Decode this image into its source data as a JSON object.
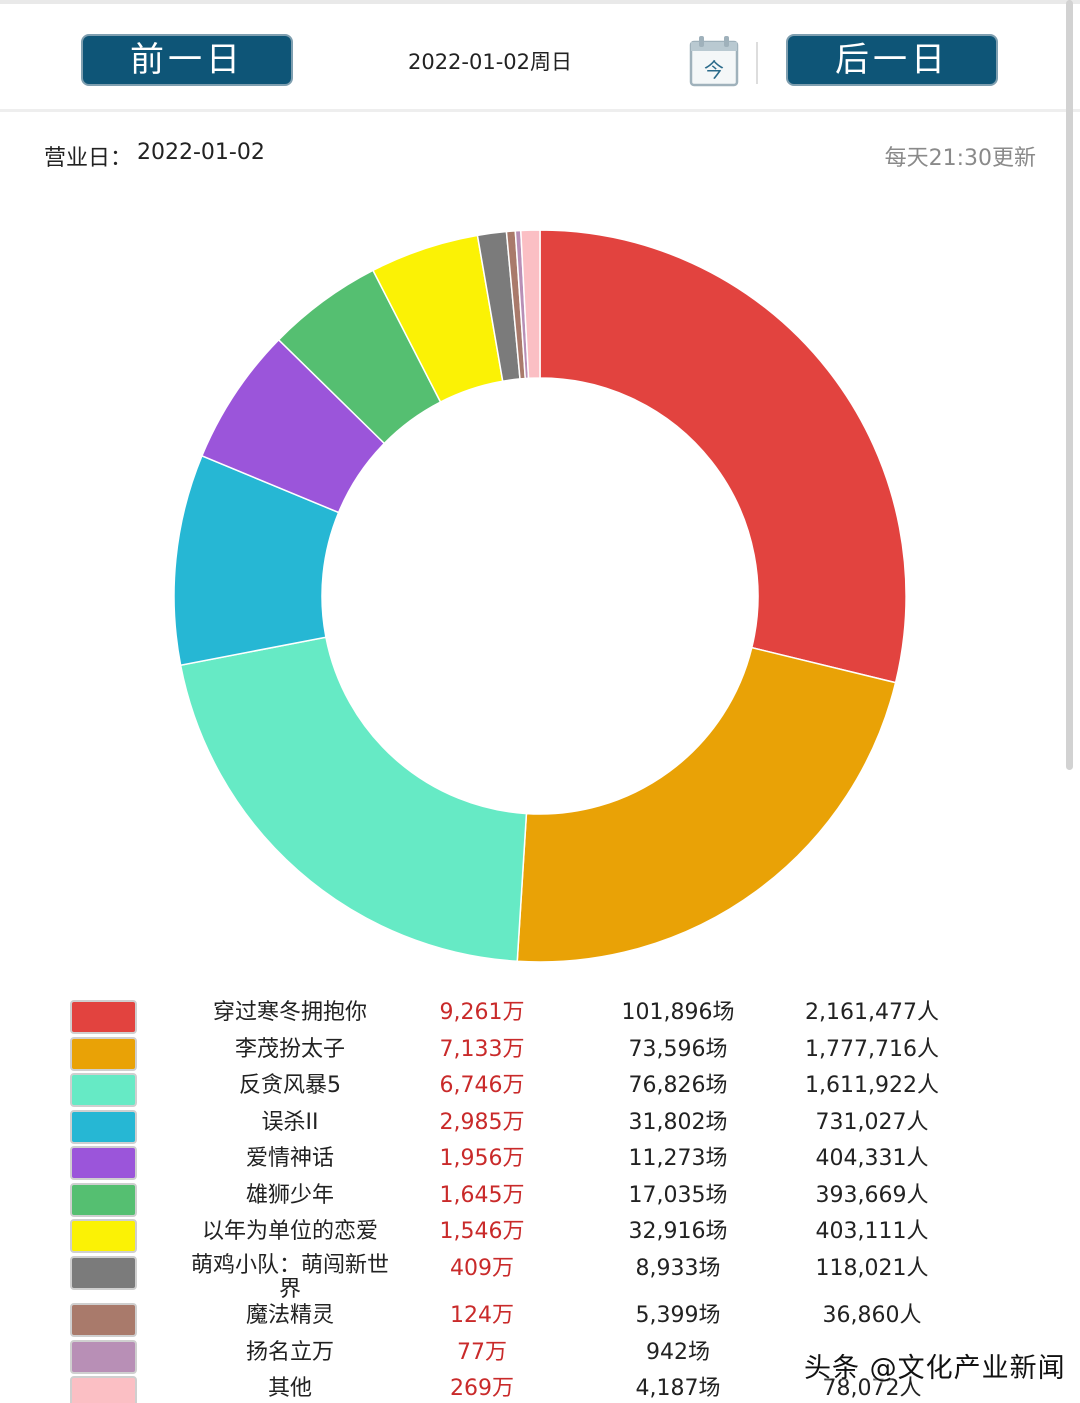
{
  "header": {
    "prev_label": "前一日",
    "next_label": "后一日",
    "date_text": "2022-01-02周日",
    "today_icon_char": "今"
  },
  "info": {
    "business_day_label": "营业日：",
    "business_day_value": "2022-01-02",
    "update_note": "每天21:30更新"
  },
  "chart_data": {
    "type": "pie",
    "donut": true,
    "legend_position": "bottom",
    "unit_box_office": "万",
    "categories": [
      "穿过寒冬拥抱你",
      "李茂扮太子",
      "反贪风暴5",
      "误杀II",
      "爱情神话",
      "雄狮少年",
      "以年为单位的恋爱",
      "萌鸡小队：萌闯新世界",
      "魔法精灵",
      "扬名立万",
      "其他"
    ],
    "values": [
      9261,
      7133,
      6746,
      2985,
      1956,
      1645,
      1546,
      409,
      124,
      77,
      269
    ],
    "colors": [
      "#e2433f",
      "#e9a206",
      "#66eac5",
      "#26b7d4",
      "#9b55da",
      "#55bf71",
      "#fbf205",
      "#7b7b7b",
      "#a97a6b",
      "#b88fb6",
      "#fbbfc4"
    ]
  },
  "rows": [
    {
      "name": "穿过寒冬拥抱你",
      "box": "9,261万",
      "shows": "101,896场",
      "people": "2,161,477人"
    },
    {
      "name": "李茂扮太子",
      "box": "7,133万",
      "shows": "73,596场",
      "people": "1,777,716人"
    },
    {
      "name": "反贪风暴5",
      "box": "6,746万",
      "shows": "76,826场",
      "people": "1,611,922人"
    },
    {
      "name": "误杀II",
      "box": "2,985万",
      "shows": "31,802场",
      "people": "731,027人"
    },
    {
      "name": "爱情神话",
      "box": "1,956万",
      "shows": "11,273场",
      "people": "404,331人"
    },
    {
      "name": "雄狮少年",
      "box": "1,645万",
      "shows": "17,035场",
      "people": "393,669人"
    },
    {
      "name": "以年为单位的恋爱",
      "box": "1,546万",
      "shows": "32,916场",
      "people": "403,111人"
    },
    {
      "name": "萌鸡小队：萌闯新世界",
      "box": "409万",
      "shows": "8,933场",
      "people": "118,021人"
    },
    {
      "name": "魔法精灵",
      "box": "124万",
      "shows": "5,399场",
      "people": "36,860人"
    },
    {
      "name": "扬名立万",
      "box": "77万",
      "shows": "942场",
      "people": ""
    },
    {
      "name": "其他",
      "box": "269万",
      "shows": "4,187场",
      "people": "78,072人"
    }
  ],
  "watermark": "头条 @文化产业新闻"
}
